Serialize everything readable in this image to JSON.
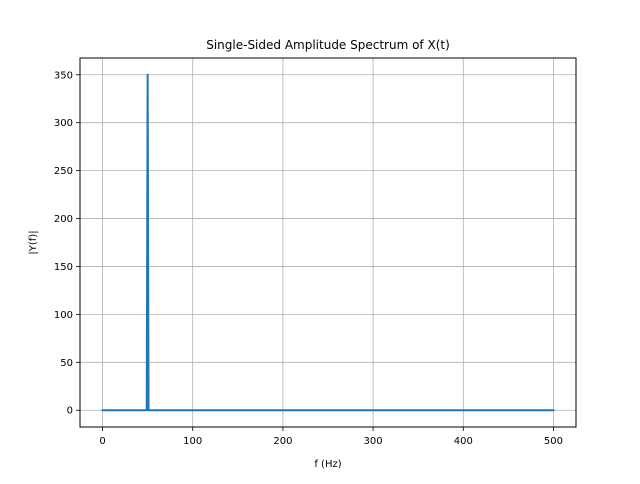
{
  "chart_data": {
    "type": "line",
    "title": "Single-Sided Amplitude Spectrum of X(t)",
    "xlabel": "f (Hz)",
    "ylabel": "|Y(f)|",
    "xlim": [
      -25,
      525
    ],
    "ylim": [
      -17.5,
      367.5
    ],
    "xticks": [
      0,
      100,
      200,
      300,
      400,
      500
    ],
    "yticks": [
      0,
      50,
      100,
      150,
      200,
      250,
      300,
      350
    ],
    "xtick_labels": [
      "0",
      "100",
      "200",
      "300",
      "400",
      "500"
    ],
    "ytick_labels": [
      "0",
      "50",
      "100",
      "150",
      "200",
      "250",
      "300",
      "350"
    ],
    "grid": true,
    "legend": "none",
    "series": [
      {
        "color": "#1f77b4",
        "x": [
          0,
          49,
          50,
          51,
          500
        ],
        "y": [
          0,
          0,
          350,
          0,
          0
        ]
      }
    ]
  }
}
